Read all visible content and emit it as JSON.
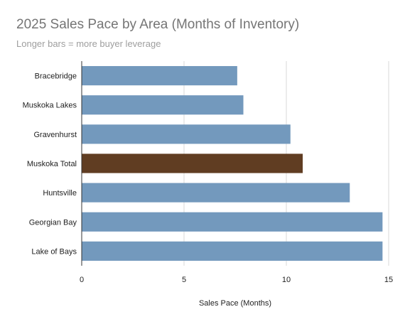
{
  "chart_data": {
    "type": "bar",
    "orientation": "horizontal",
    "title": "2025 Sales Pace by Area (Months of Inventory)",
    "subtitle": "Longer bars = more buyer leverage",
    "xlabel": "Sales Pace (Months)",
    "ylabel": "",
    "categories": [
      "Bracebridge",
      "Muskoka Lakes",
      "Gravenhurst",
      "Muskoka Total",
      "Huntsville",
      "Georgian Bay",
      "Lake of Bays"
    ],
    "values": [
      7.6,
      7.9,
      10.2,
      10.8,
      13.1,
      14.7,
      14.7
    ],
    "xlim": [
      0,
      15
    ],
    "xticks": [
      "0",
      "5",
      "10",
      "15"
    ],
    "grid": true,
    "legend": "none",
    "colors": {
      "default_bar": "#7399bd",
      "highlight_bar": "#603d22",
      "grid": "#d9d9d9",
      "axis": "#333333"
    },
    "highlight_category": "Muskoka Total"
  }
}
